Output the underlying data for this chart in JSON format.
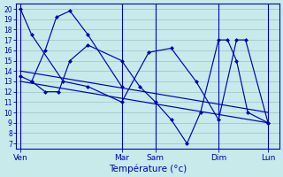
{
  "background_color": "#c8eaea",
  "grid_color": "#9ec0c0",
  "line_color": "#0000bb",
  "ylim": [
    6.5,
    20.5
  ],
  "yticks": [
    7,
    8,
    9,
    10,
    11,
    12,
    13,
    14,
    15,
    16,
    17,
    18,
    19,
    20
  ],
  "x_labels": [
    "Ven",
    "Mar",
    "Sam",
    "Dim",
    "Lun"
  ],
  "day_x": [
    0,
    45,
    60,
    88,
    110
  ],
  "xlim": [
    -2,
    115
  ],
  "xlabel": "Température (°c)",
  "series": [
    {
      "x": [
        0,
        5,
        19,
        30,
        45,
        57,
        67,
        78,
        88,
        96,
        100,
        110
      ],
      "y": [
        20,
        17.5,
        13.0,
        12.5,
        11.0,
        15.8,
        16.2,
        13.0,
        9.3,
        17.0,
        17.0,
        9.0
      ],
      "markers": true
    },
    {
      "x": [
        0,
        5,
        11,
        17,
        22,
        30,
        45,
        53,
        60,
        67,
        74,
        80,
        88,
        92,
        96,
        101,
        110
      ],
      "y": [
        13.5,
        13.0,
        12.0,
        12.0,
        15.0,
        16.5,
        15.0,
        12.5,
        11.0,
        9.3,
        7.0,
        10.0,
        17.0,
        17.0,
        15.0,
        10.0,
        9.0
      ],
      "markers": true
    },
    {
      "x": [
        5,
        11,
        16,
        22,
        30,
        45
      ],
      "y": [
        13.0,
        16.0,
        19.2,
        19.8,
        17.5,
        12.5
      ],
      "markers": true
    },
    {
      "x": [
        0,
        110
      ],
      "y": [
        14.0,
        10.0
      ],
      "markers": false
    },
    {
      "x": [
        0,
        110
      ],
      "y": [
        13.0,
        9.0
      ],
      "markers": false
    }
  ]
}
